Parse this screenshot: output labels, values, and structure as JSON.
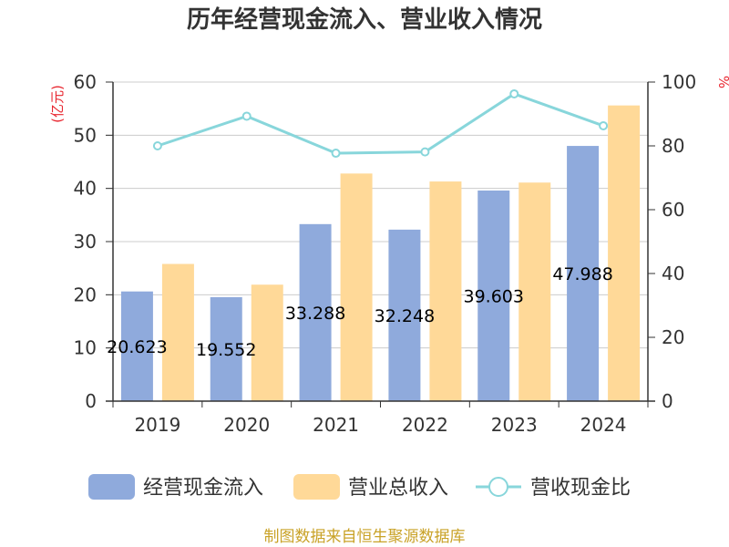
{
  "chart_data": {
    "type": "bar",
    "title": "历年经营现金流入、营业收入情况",
    "categories": [
      "2019",
      "2020",
      "2021",
      "2022",
      "2023",
      "2024"
    ],
    "series": [
      {
        "name": "经营现金流入",
        "type": "bar",
        "axis": "left",
        "color": "#8faadc",
        "values": [
          20.623,
          19.552,
          33.288,
          32.248,
          39.603,
          47.988
        ],
        "labels": [
          "20.623",
          "19.552",
          "33.288",
          "32.248",
          "39.603",
          "47.988"
        ]
      },
      {
        "name": "营业总收入",
        "type": "bar",
        "axis": "left",
        "color": "#ffd998",
        "values": [
          25.8,
          21.9,
          42.8,
          41.3,
          41.1,
          55.6
        ]
      },
      {
        "name": "营收现金比",
        "type": "line",
        "axis": "right",
        "color": "#88d6db",
        "values": [
          80,
          89.3,
          77.7,
          78.1,
          96.3,
          86.3
        ]
      }
    ],
    "y_left": {
      "label": "(亿元)",
      "ylim": [
        0,
        60
      ],
      "ticks": [
        0,
        10,
        20,
        30,
        40,
        50,
        60
      ]
    },
    "y_right": {
      "label": "%",
      "ylim": [
        0,
        100
      ],
      "ticks": [
        0,
        20,
        40,
        60,
        80,
        100
      ]
    },
    "grid": true,
    "legend_position": "bottom"
  },
  "source": "制图数据来自恒生聚源数据库"
}
